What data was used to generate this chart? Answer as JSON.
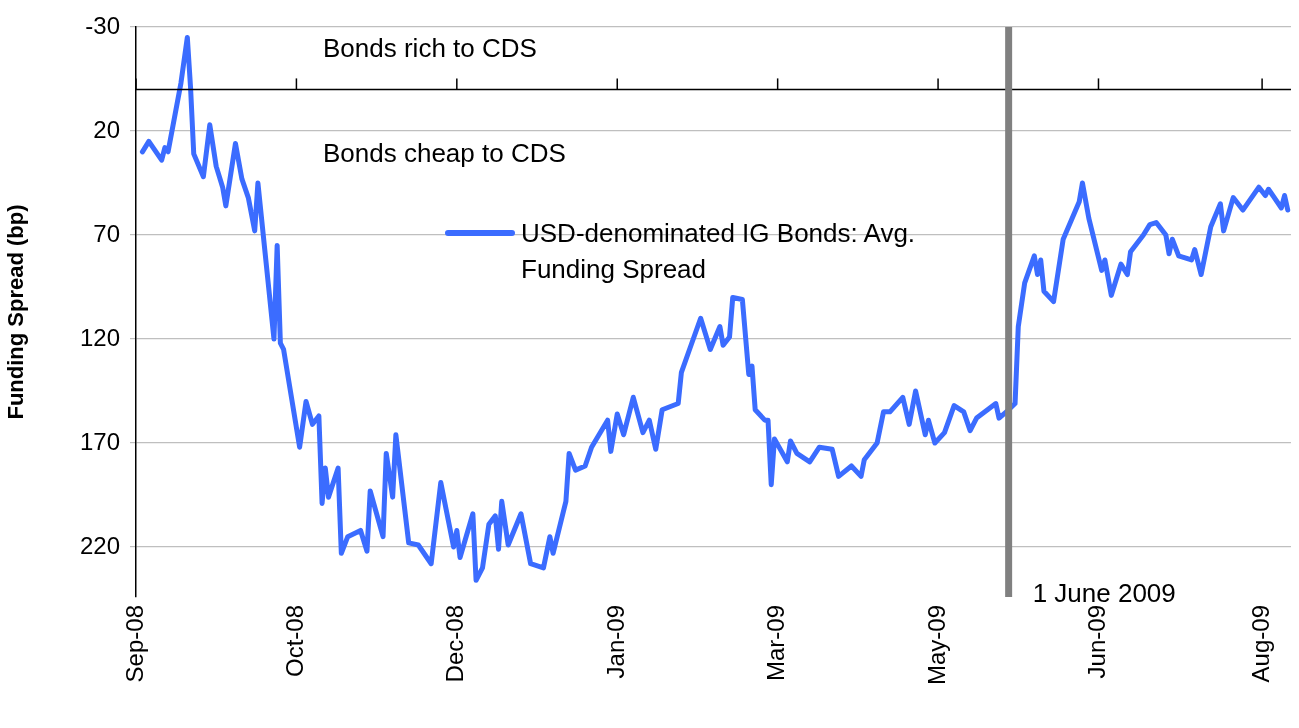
{
  "chart_data": {
    "type": "line",
    "ylabel": "Funding Spread (bp)",
    "ylim": [
      244,
      -30
    ],
    "yticks": [
      -30,
      20,
      70,
      120,
      170,
      220
    ],
    "xlim": [
      "2008-09-02",
      "2009-08-28"
    ],
    "xticks": [
      {
        "value": "2008-09-02",
        "label": "Sep-08"
      },
      {
        "value": "2008-10-22",
        "label": "Oct-08"
      },
      {
        "value": "2008-12-11",
        "label": "Dec-08"
      },
      {
        "value": "2009-01-30",
        "label": "Jan-09"
      },
      {
        "value": "2009-03-21",
        "label": "Mar-09"
      },
      {
        "value": "2009-05-10",
        "label": "May-09"
      },
      {
        "value": "2009-06-29",
        "label": "Jun-09"
      },
      {
        "value": "2009-08-19",
        "label": "Aug-09"
      }
    ],
    "grid": "y",
    "legend": "top",
    "marker": "none",
    "line_style": "solid",
    "series": [
      {
        "name": "USD-denominated IG Bonds: Avg. Funding Spread",
        "color": "#3b6cff",
        "x": [
          "2008-09-04",
          "2008-09-06",
          "2008-09-10",
          "2008-09-11",
          "2008-09-12",
          "2008-09-16",
          "2008-09-18",
          "2008-09-19",
          "2008-09-20",
          "2008-09-23",
          "2008-09-25",
          "2008-09-27",
          "2008-09-29",
          "2008-09-30",
          "2008-10-03",
          "2008-10-05",
          "2008-10-07",
          "2008-10-09",
          "2008-10-10",
          "2008-10-15",
          "2008-10-16",
          "2008-10-17",
          "2008-10-18",
          "2008-10-23",
          "2008-10-25",
          "2008-10-27",
          "2008-10-29",
          "2008-10-30",
          "2008-10-31",
          "2008-11-01",
          "2008-11-04",
          "2008-11-05",
          "2008-11-07",
          "2008-11-11",
          "2008-11-13",
          "2008-11-14",
          "2008-11-18",
          "2008-11-19",
          "2008-11-21",
          "2008-11-22",
          "2008-11-26",
          "2008-11-29",
          "2008-12-03",
          "2008-12-06",
          "2008-12-10",
          "2008-12-11",
          "2008-12-12",
          "2008-12-16",
          "2008-12-17",
          "2008-12-19",
          "2008-12-21",
          "2008-12-23",
          "2008-12-24",
          "2008-12-25",
          "2008-12-27",
          "2008-12-31",
          "2009-01-03",
          "2009-01-07",
          "2009-01-09",
          "2009-01-10",
          "2009-01-14",
          "2009-01-15",
          "2009-01-17",
          "2009-01-20",
          "2009-01-22",
          "2009-01-27",
          "2009-01-28",
          "2009-01-30",
          "2009-02-01",
          "2009-02-04",
          "2009-02-07",
          "2009-02-09",
          "2009-02-11",
          "2009-02-13",
          "2009-02-18",
          "2009-02-19",
          "2009-02-22",
          "2009-02-25",
          "2009-02-28",
          "2009-03-03",
          "2009-03-04",
          "2009-03-06",
          "2009-03-07",
          "2009-03-10",
          "2009-03-12",
          "2009-03-13",
          "2009-03-14",
          "2009-03-17",
          "2009-03-18",
          "2009-03-19",
          "2009-03-20",
          "2009-03-24",
          "2009-03-25",
          "2009-03-27",
          "2009-03-31",
          "2009-04-03",
          "2009-04-07",
          "2009-04-09",
          "2009-04-13",
          "2009-04-16",
          "2009-04-17",
          "2009-04-21",
          "2009-04-23",
          "2009-04-25",
          "2009-04-29",
          "2009-05-01",
          "2009-05-03",
          "2009-05-06",
          "2009-05-07",
          "2009-05-09",
          "2009-05-12",
          "2009-05-15",
          "2009-05-18",
          "2009-05-20",
          "2009-05-22",
          "2009-05-28",
          "2009-05-29",
          "2009-06-01",
          "2009-06-03",
          "2009-06-04",
          "2009-06-06",
          "2009-06-09",
          "2009-06-10",
          "2009-06-11",
          "2009-06-12",
          "2009-06-15",
          "2009-06-18",
          "2009-06-23",
          "2009-06-24",
          "2009-06-26",
          "2009-06-30",
          "2009-07-01",
          "2009-07-03",
          "2009-07-06",
          "2009-07-08",
          "2009-07-09",
          "2009-07-13",
          "2009-07-15",
          "2009-07-17",
          "2009-07-20",
          "2009-07-21",
          "2009-07-22",
          "2009-07-24",
          "2009-07-28",
          "2009-07-29",
          "2009-07-31",
          "2009-08-03",
          "2009-08-06",
          "2009-08-07",
          "2009-08-10",
          "2009-08-13",
          "2009-08-18",
          "2009-08-20",
          "2009-08-21",
          "2009-08-25",
          "2009-08-26",
          "2009-08-27"
        ],
        "values": [
          30,
          25,
          34,
          28,
          30,
          -3,
          -25,
          -1,
          31,
          42,
          17,
          37,
          47,
          56,
          26,
          43,
          52,
          68,
          45,
          120,
          75,
          122,
          125,
          172,
          150,
          161,
          157,
          199,
          182,
          196,
          182,
          223,
          215,
          212,
          222,
          193,
          215,
          175,
          196,
          166,
          218,
          219,
          228,
          189,
          220,
          212,
          225,
          204,
          236,
          230,
          209,
          205,
          221,
          198,
          219,
          204,
          228,
          230,
          215,
          223,
          198,
          175,
          183,
          181,
          172,
          159,
          174,
          156,
          166,
          148,
          165,
          159,
          173,
          154,
          151,
          136,
          123,
          110,
          125,
          114,
          123,
          119,
          100,
          101,
          137,
          133,
          154,
          159,
          159,
          190,
          168,
          179,
          169,
          175,
          179,
          172,
          173,
          186,
          181,
          186,
          178,
          170,
          155,
          155,
          148,
          161,
          145,
          166,
          159,
          170,
          165,
          152,
          155,
          164,
          158,
          151,
          158,
          154,
          151,
          114,
          93,
          80,
          89,
          82,
          97,
          102,
          72,
          54,
          45,
          62,
          87,
          82,
          99,
          84,
          89,
          78,
          70,
          65,
          64,
          70,
          79,
          72,
          80,
          82,
          77,
          89,
          66,
          55,
          68,
          52,
          58,
          47,
          51,
          48,
          57,
          51,
          58
        ]
      }
    ],
    "ref_lines": [
      {
        "axis": "y",
        "value": 0,
        "color": "#000000"
      },
      {
        "axis": "x",
        "value": "2009-06-01",
        "label": "1 June 2009",
        "color": "#808080"
      }
    ],
    "annotations": [
      "Bonds rich to CDS",
      "Bonds cheap to CDS"
    ]
  }
}
